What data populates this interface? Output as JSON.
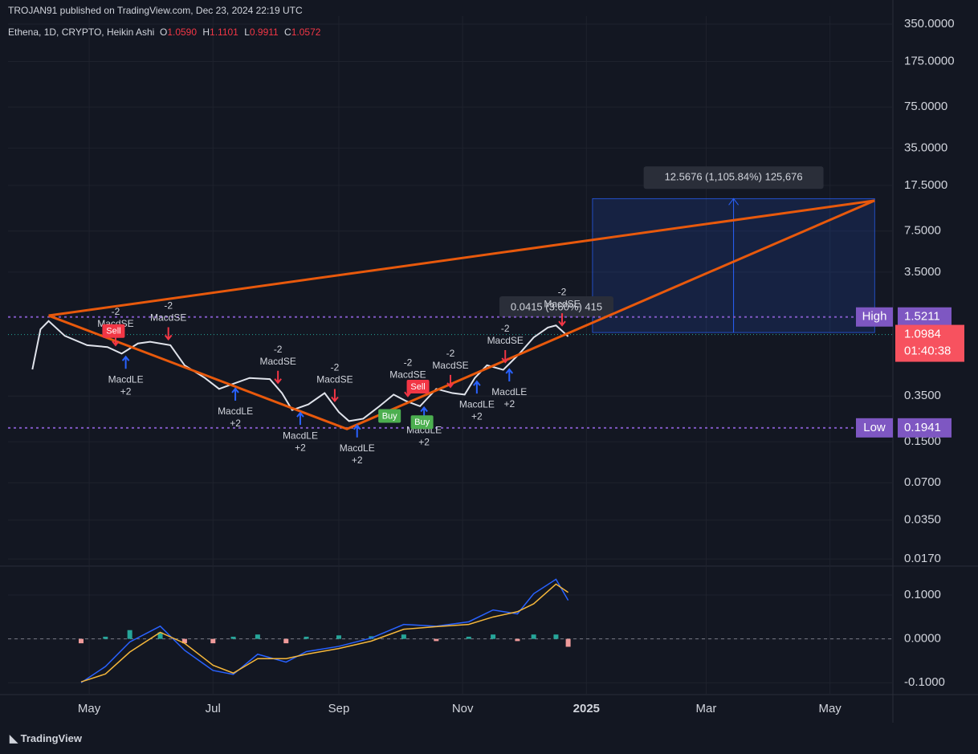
{
  "header": {
    "publisher": "TROJAN91 published on TradingView.com, Dec 23, 2024 22:19 UTC",
    "symbol": "Ethena, 1D, CRYPTO, Heikin Ashi",
    "ohlc": [
      {
        "label": "O",
        "value": "1.0590"
      },
      {
        "label": "H",
        "value": "1.1101"
      },
      {
        "label": "L",
        "value": "0.9911"
      },
      {
        "label": "C",
        "value": "1.0572"
      }
    ]
  },
  "footer": "TradingView",
  "chart_data": [
    {
      "type": "line",
      "log_scale": true,
      "grid": true,
      "xlim": [
        "2024-03-22",
        "2025-06-01"
      ],
      "xticks": [
        {
          "value": "2024-05-01",
          "label": "May"
        },
        {
          "value": "2024-07-01",
          "label": "Jul"
        },
        {
          "value": "2024-09-01",
          "label": "Sep"
        },
        {
          "value": "2024-11-01",
          "label": "Nov"
        },
        {
          "value": "2025-01-01",
          "label": "2025"
        },
        {
          "value": "2025-03-01",
          "label": "Mar"
        },
        {
          "value": "2025-05-01",
          "label": "May"
        }
      ],
      "ylim": [
        0.0149,
        406
      ],
      "yticks": [
        {
          "value": 350,
          "label": "350.0000"
        },
        {
          "value": 175,
          "label": "175.0000"
        },
        {
          "value": 75,
          "label": "75.0000"
        },
        {
          "value": 35,
          "label": "35.0000"
        },
        {
          "value": 17.5,
          "label": "17.5000"
        },
        {
          "value": 7.5,
          "label": "7.5000"
        },
        {
          "value": 3.5,
          "label": "3.5000"
        },
        {
          "value": 0.35,
          "label": "0.3500"
        },
        {
          "value": 0.15,
          "label": "0.1500"
        },
        {
          "value": 0.07,
          "label": "0.0700"
        },
        {
          "value": 0.035,
          "label": "0.0350"
        },
        {
          "value": 0.017,
          "label": "0.0170"
        }
      ],
      "x": [
        "2024-04-03",
        "2024-04-07",
        "2024-04-11",
        "2024-04-19",
        "2024-04-30",
        "2024-05-10",
        "2024-05-17",
        "2024-05-25",
        "2024-05-31",
        "2024-06-10",
        "2024-06-17",
        "2024-06-27",
        "2024-07-04",
        "2024-07-11",
        "2024-07-19",
        "2024-07-29",
        "2024-08-04",
        "2024-08-09",
        "2024-08-17",
        "2024-08-25",
        "2024-09-01",
        "2024-09-06",
        "2024-09-13",
        "2024-09-21",
        "2024-09-28",
        "2024-10-04",
        "2024-10-11",
        "2024-10-19",
        "2024-10-27",
        "2024-11-02",
        "2024-11-07",
        "2024-11-13",
        "2024-11-21",
        "2024-11-29",
        "2024-12-06",
        "2024-12-13",
        "2024-12-17",
        "2024-12-23"
      ],
      "values": [
        0.574,
        1.21,
        1.41,
        1.07,
        0.9,
        0.87,
        0.77,
        0.93,
        0.96,
        0.9,
        0.62,
        0.49,
        0.4,
        0.44,
        0.49,
        0.48,
        0.37,
        0.27,
        0.3,
        0.37,
        0.26,
        0.22,
        0.23,
        0.29,
        0.36,
        0.32,
        0.29,
        0.4,
        0.37,
        0.36,
        0.49,
        0.62,
        0.57,
        0.77,
        1.04,
        1.25,
        1.3,
        1.06
      ],
      "color": "#e0e3eb",
      "high": {
        "label": "High",
        "value": 1.5211
      },
      "low": {
        "label": "Low",
        "value": 0.1941
      },
      "last": {
        "value": 1.0984,
        "countdown": "01:40:38"
      },
      "trend_lines": [
        {
          "x": [
            "2024-04-11",
            "2025-05-23"
          ],
          "values": [
            1.56,
            13.2
          ]
        },
        {
          "x": [
            "2024-04-11",
            "2024-09-05",
            "2025-05-23"
          ],
          "values": [
            1.56,
            0.19,
            13.2
          ]
        }
      ],
      "measure": {
        "text": "12.5676 (1,105.84%) 125,676",
        "x": [
          "2025-01-04",
          "2025-05-23"
        ],
        "values": [
          1.14,
          13.7
        ]
      },
      "measure_small": {
        "text": "0.0415 (3.60%) 415"
      },
      "signals": [
        {
          "x": "2024-05-14",
          "label": "MacdSE",
          "qty": "-2"
        },
        {
          "x": "2024-05-19",
          "label": "MacdLE",
          "qty": "+2"
        },
        {
          "x": "2024-06-09",
          "label": "MacdSE",
          "qty": "-2"
        },
        {
          "x": "2024-07-12",
          "label": "MacdLE",
          "qty": "+2"
        },
        {
          "x": "2024-08-02",
          "label": "MacdSE",
          "qty": "-2"
        },
        {
          "x": "2024-08-13",
          "label": "MacdLE",
          "qty": "+2"
        },
        {
          "x": "2024-08-30",
          "label": "MacdSE",
          "qty": "-2"
        },
        {
          "x": "2024-09-10",
          "label": "MacdLE",
          "qty": "+2"
        },
        {
          "x": "2024-10-05",
          "label": "MacdSE",
          "qty": "-2"
        },
        {
          "x": "2024-10-13",
          "label": "MacdLE",
          "qty": "+2"
        },
        {
          "x": "2024-10-26",
          "label": "MacdSE",
          "qty": "-2"
        },
        {
          "x": "2024-11-08",
          "label": "MacdLE",
          "qty": "+2"
        },
        {
          "x": "2024-11-22",
          "label": "MacdSE",
          "qty": "-2"
        },
        {
          "x": "2024-11-24",
          "label": "MacdLE",
          "qty": "+2"
        },
        {
          "x": "2024-12-20",
          "label": "MacdSE",
          "qty": "-2"
        }
      ],
      "orders": [
        {
          "x": "2024-05-13",
          "label": "Sell"
        },
        {
          "x": "2024-09-26",
          "label": "Buy"
        },
        {
          "x": "2024-10-10",
          "label": "Sell"
        },
        {
          "x": "2024-10-12",
          "label": "Buy"
        }
      ]
    },
    {
      "type": "macd",
      "grid": true,
      "xlim": [
        "2024-03-22",
        "2025-06-01"
      ],
      "ylim": [
        -0.127,
        0.166
      ],
      "yticks": [
        {
          "value": 0.1,
          "label": "0.1000"
        },
        {
          "value": 0,
          "label": "0.0000"
        },
        {
          "value": -0.1,
          "label": "-0.1000"
        }
      ],
      "x": [
        "2024-04-27",
        "2024-05-09",
        "2024-05-21",
        "2024-06-05",
        "2024-06-17",
        "2024-07-01",
        "2024-07-11",
        "2024-07-23",
        "2024-08-06",
        "2024-08-16",
        "2024-09-01",
        "2024-09-17",
        "2024-10-03",
        "2024-10-19",
        "2024-11-04",
        "2024-11-16",
        "2024-11-28",
        "2024-12-06",
        "2024-12-17",
        "2024-12-23"
      ],
      "series": [
        {
          "color": "#2962ff",
          "values": [
            -0.1,
            -0.063,
            -0.007,
            0.029,
            -0.026,
            -0.072,
            -0.081,
            -0.035,
            -0.053,
            -0.029,
            -0.017,
            0.002,
            0.033,
            0.029,
            0.039,
            0.066,
            0.057,
            0.103,
            0.136,
            0.088
          ]
        },
        {
          "color": "#f5b73b",
          "values": [
            -0.098,
            -0.08,
            -0.03,
            0.015,
            -0.01,
            -0.06,
            -0.078,
            -0.045,
            -0.045,
            -0.035,
            -0.022,
            -0.005,
            0.022,
            0.028,
            0.033,
            0.05,
            0.062,
            0.08,
            0.125,
            0.106
          ]
        }
      ],
      "histogram": {
        "values": [
          -0.01,
          0.005,
          0.02,
          0.015,
          -0.01,
          -0.01,
          0.005,
          0.01,
          -0.01,
          0.005,
          0.008,
          0.006,
          0.01,
          -0.005,
          0.005,
          0.01,
          -0.005,
          0.01,
          0.01,
          -0.018
        ],
        "up_color": "#26a69a",
        "down_color": "#ef9a9a"
      }
    }
  ]
}
